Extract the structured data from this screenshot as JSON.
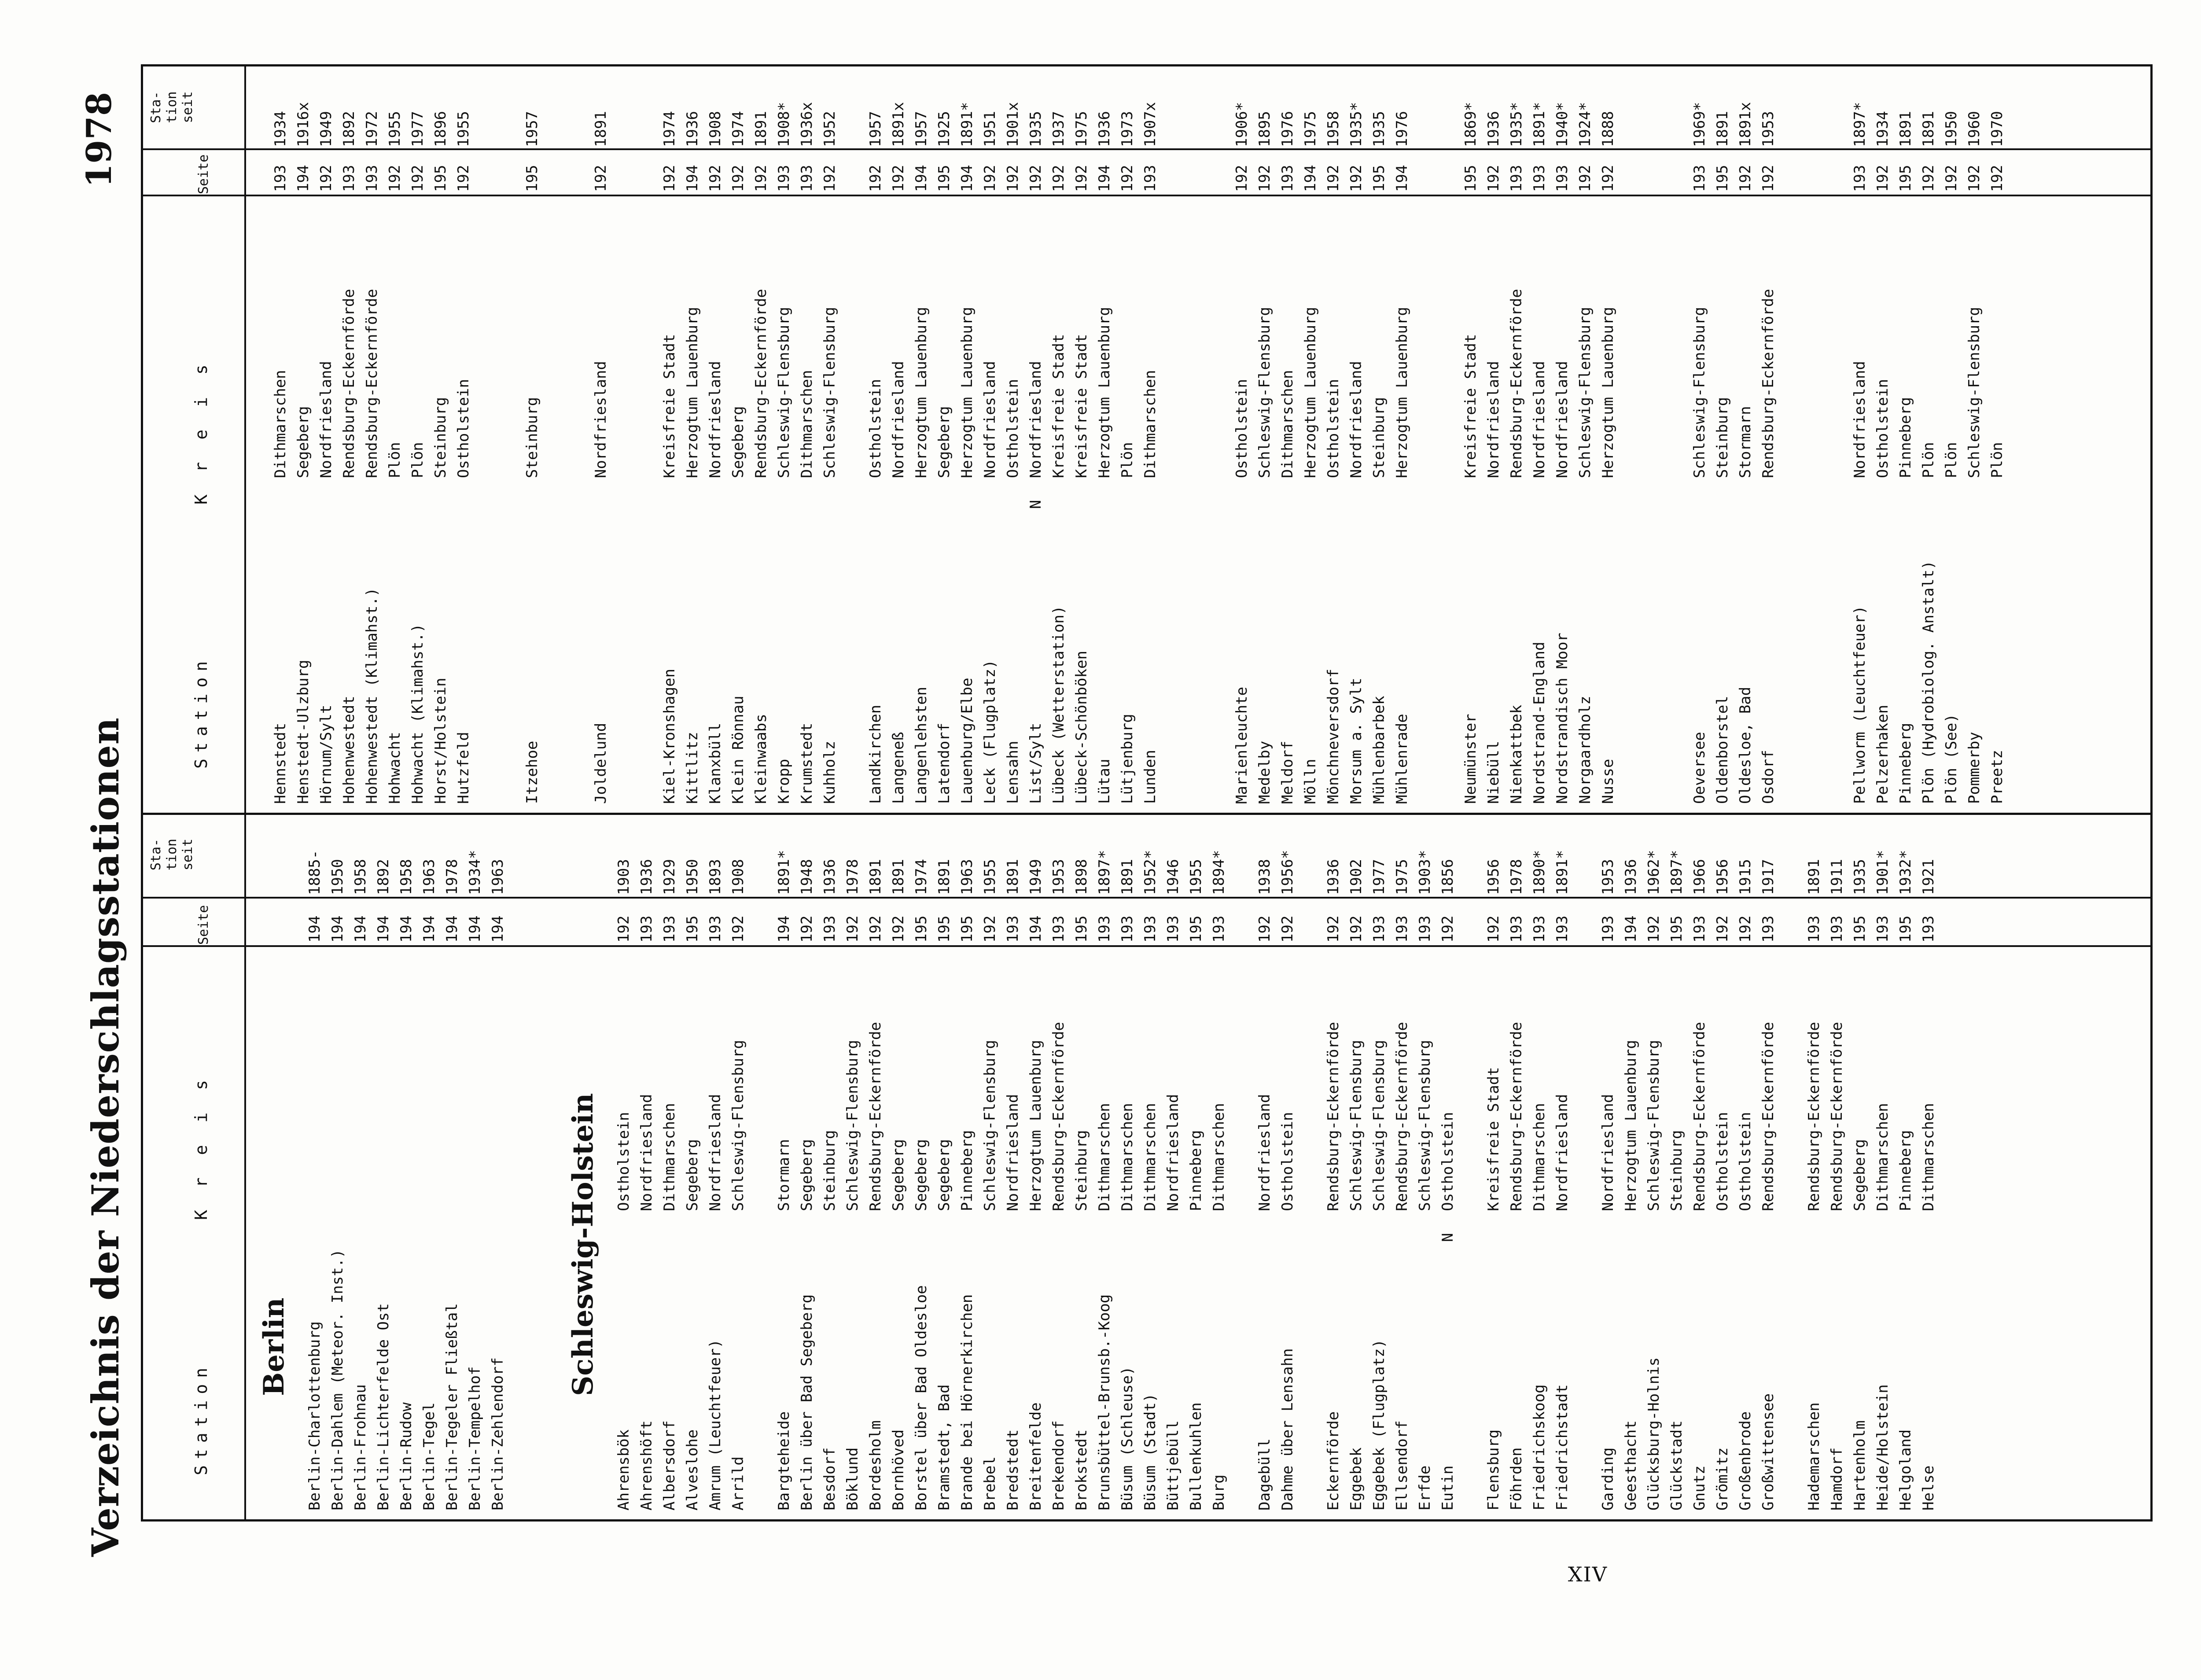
{
  "page_number": "XIV",
  "title": "Verzeichnis der Niederschlagsstationen",
  "year": "1978",
  "headers": {
    "station": "Station",
    "kreis": "K r e i s",
    "seite": "Seite",
    "seit": "Sta-\ntion\nseit"
  },
  "left": [
    {
      "section": "Berlin"
    },
    {
      "station": "Berlin-Charlottenburg",
      "kreis": "",
      "seite": "194",
      "seit": "1885-"
    },
    {
      "station": "Berlin-Dahlem (Meteor. Inst.)",
      "kreis": "",
      "seite": "194",
      "seit": "1950"
    },
    {
      "station": "Berlin-Frohnau",
      "kreis": "",
      "seite": "194",
      "seit": "1958"
    },
    {
      "station": "Berlin-Lichterfelde Ost",
      "kreis": "",
      "seite": "194",
      "seit": "1892"
    },
    {
      "station": "Berlin-Rudow",
      "kreis": "",
      "seite": "194",
      "seit": "1958"
    },
    {
      "station": "Berlin-Tegel",
      "kreis": "",
      "seite": "194",
      "seit": "1963"
    },
    {
      "station": "Berlin-Tegeler Fließtal",
      "kreis": "",
      "seite": "194",
      "seit": "1978"
    },
    {
      "station": "Berlin-Tempelhof",
      "kreis": "",
      "seite": "194",
      "seit": "1934*"
    },
    {
      "station": "Berlin-Zehlendorf",
      "kreis": "",
      "seite": "194",
      "seit": "1963"
    },
    {
      "gap": 2
    },
    {
      "section": "Schleswig-Holstein"
    },
    {
      "station": "Ahrensbök",
      "kreis": "Ostholstein",
      "seite": "192",
      "seit": "1903"
    },
    {
      "station": "Ahrenshöft",
      "kreis": "Nordfriesland",
      "seite": "193",
      "seit": "1936"
    },
    {
      "station": "Albersdorf",
      "kreis": "Dithmarschen",
      "seite": "193",
      "seit": "1929"
    },
    {
      "station": "Alveslohe",
      "kreis": "Segeberg",
      "seite": "195",
      "seit": "1950"
    },
    {
      "station": "Amrum (Leuchtfeuer)",
      "kreis": "Nordfriesland",
      "seite": "193",
      "seit": "1893"
    },
    {
      "station": "Arrild",
      "kreis": "Schleswig-Flensburg",
      "seite": "192",
      "seit": "1908"
    },
    {
      "gap": 1
    },
    {
      "station": "Bargteheide",
      "kreis": "Stormarn",
      "seite": "194",
      "seit": "1891*"
    },
    {
      "station": "Berlin über Bad Segeberg",
      "kreis": "Segeberg",
      "seite": "192",
      "seit": "1948"
    },
    {
      "station": "Besdorf",
      "kreis": "Steinburg",
      "seite": "193",
      "seit": "1936"
    },
    {
      "station": "Böklund",
      "kreis": "Schleswig-Flensburg",
      "seite": "192",
      "seit": "1978"
    },
    {
      "station": "Bordesholm",
      "kreis": "Rendsburg-Eckernförde",
      "seite": "192",
      "seit": "1891"
    },
    {
      "station": "Bornhöved",
      "kreis": "Segeberg",
      "seite": "192",
      "seit": "1891"
    },
    {
      "station": "Borstel über Bad Oldesloe",
      "kreis": "Segeberg",
      "seite": "195",
      "seit": "1974"
    },
    {
      "station": "Bramstedt, Bad",
      "kreis": "Segeberg",
      "seite": "195",
      "seit": "1891"
    },
    {
      "station": "Brande bei Hörnerkirchen",
      "kreis": "Pinneberg",
      "seite": "195",
      "seit": "1963"
    },
    {
      "station": "Brebel",
      "kreis": "Schleswig-Flensburg",
      "seite": "192",
      "seit": "1955"
    },
    {
      "station": "Bredstedt",
      "kreis": "Nordfriesland",
      "seite": "193",
      "seit": "1891"
    },
    {
      "station": "Breitenfelde",
      "kreis": "Herzogtum Lauenburg",
      "seite": "194",
      "seit": "1949"
    },
    {
      "station": "Brekendorf",
      "kreis": "Rendsburg-Eckernförde",
      "seite": "193",
      "seit": "1953"
    },
    {
      "station": "Brokstedt",
      "kreis": "Steinburg",
      "seite": "195",
      "seit": "1898"
    },
    {
      "station": "Brunsbüttel-Brunsb.-Koog",
      "kreis": "Dithmarschen",
      "seite": "193",
      "seit": "1897*"
    },
    {
      "station": "Büsum (Schleuse)",
      "kreis": "Dithmarschen",
      "seite": "193",
      "seit": "1891"
    },
    {
      "station": "Büsum (Stadt)",
      "kreis": "Dithmarschen",
      "seite": "193",
      "seit": "1952*"
    },
    {
      "station": "Büttjebüll",
      "kreis": "Nordfriesland",
      "seite": "193",
      "seit": "1946"
    },
    {
      "station": "Bullenkuhlen",
      "kreis": "Pinneberg",
      "seite": "195",
      "seit": "1955"
    },
    {
      "station": "Burg",
      "kreis": "Dithmarschen",
      "seite": "193",
      "seit": "1894*"
    },
    {
      "gap": 1
    },
    {
      "station": "Dagebüll",
      "kreis": "Nordfriesland",
      "seite": "192",
      "seit": "1938"
    },
    {
      "station": "Dahme über Lensahn",
      "kreis": "Ostholstein",
      "seite": "192",
      "seit": "1956*"
    },
    {
      "gap": 1
    },
    {
      "station": "Eckernförde",
      "kreis": "Rendsburg-Eckernförde",
      "seite": "192",
      "seit": "1936"
    },
    {
      "station": "Eggebek",
      "kreis": "Schleswig-Flensburg",
      "seite": "192",
      "seit": "1902"
    },
    {
      "station": "Eggebek (Flugplatz)",
      "kreis": "Schleswig-Flensburg",
      "seite": "193",
      "seit": "1977"
    },
    {
      "station": "Ellsendorf",
      "kreis": "Rendsburg-Eckernförde",
      "seite": "193",
      "seit": "1975"
    },
    {
      "station": "Erfde",
      "kreis": "Schleswig-Flensburg",
      "seite": "193",
      "seit": "1903*"
    },
    {
      "station": "Eutin",
      "kreis": "Ostholstein",
      "seite": "192",
      "seit": "1856",
      "n": true
    },
    {
      "gap": 1
    },
    {
      "station": "Flensburg",
      "kreis": "Kreisfreie Stadt",
      "seite": "192",
      "seit": "1956"
    },
    {
      "station": "Föhrden",
      "kreis": "Rendsburg-Eckernförde",
      "seite": "193",
      "seit": "1978"
    },
    {
      "station": "Friedrichskoog",
      "kreis": "Dithmarschen",
      "seite": "193",
      "seit": "1890*"
    },
    {
      "station": "Friedrichstadt",
      "kreis": "Nordfriesland",
      "seite": "193",
      "seit": "1891*"
    },
    {
      "gap": 1
    },
    {
      "station": "Garding",
      "kreis": "Nordfriesland",
      "seite": "193",
      "seit": "1953"
    },
    {
      "station": "Geesthacht",
      "kreis": "Herzogtum Lauenburg",
      "seite": "194",
      "seit": "1936"
    },
    {
      "station": "Glücksburg-Holnis",
      "kreis": "Schleswig-Flensburg",
      "seite": "192",
      "seit": "1962*"
    },
    {
      "station": "Glückstadt",
      "kreis": "Steinburg",
      "seite": "195",
      "seit": "1897*"
    },
    {
      "station": "Gnutz",
      "kreis": "Rendsburg-Eckernförde",
      "seite": "193",
      "seit": "1966"
    },
    {
      "station": "Grömitz",
      "kreis": "Ostholstein",
      "seite": "192",
      "seit": "1956"
    },
    {
      "station": "Großenbrode",
      "kreis": "Ostholstein",
      "seite": "192",
      "seit": "1915"
    },
    {
      "station": "Großwittensee",
      "kreis": "Rendsburg-Eckernförde",
      "seite": "193",
      "seit": "1917"
    },
    {
      "gap": 1
    },
    {
      "station": "Hademarschen",
      "kreis": "Rendsburg-Eckernförde",
      "seite": "193",
      "seit": "1891"
    },
    {
      "station": "Hamdorf",
      "kreis": "Rendsburg-Eckernförde",
      "seite": "193",
      "seit": "1911"
    },
    {
      "station": "Hartenholm",
      "kreis": "Segeberg",
      "seite": "195",
      "seit": "1935"
    },
    {
      "station": "Heide/Holstein",
      "kreis": "Dithmarschen",
      "seite": "193",
      "seit": "1901*"
    },
    {
      "station": "Helgoland",
      "kreis": "Pinneberg",
      "seite": "195",
      "seit": "1932*"
    },
    {
      "station": "Helse",
      "kreis": "Dithmarschen",
      "seite": "193",
      "seit": "1921"
    }
  ],
  "right": [
    {
      "gap": 1
    },
    {
      "station": "Hennstedt",
      "kreis": "Dithmarschen",
      "seite": "193",
      "seit": "1934"
    },
    {
      "station": "Henstedt-Ulzburg",
      "kreis": "Segeberg",
      "seite": "194",
      "seit": "1916x"
    },
    {
      "station": "Hörnum/Sylt",
      "kreis": "Nordfriesland",
      "seite": "192",
      "seit": "1949"
    },
    {
      "station": "Hohenwestedt",
      "kreis": "Rendsburg-Eckernförde",
      "seite": "193",
      "seit": "1892"
    },
    {
      "station": "Hohenwestedt (Klimahst.)",
      "kreis": "Rendsburg-Eckernförde",
      "seite": "193",
      "seit": "1972"
    },
    {
      "station": "Hohwacht",
      "kreis": "Plön",
      "seite": "192",
      "seit": "1955"
    },
    {
      "station": "Hohwacht (Klimahst.)",
      "kreis": "Plön",
      "seite": "192",
      "seit": "1977"
    },
    {
      "station": "Horst/Holstein",
      "kreis": "Steinburg",
      "seite": "195",
      "seit": "1896"
    },
    {
      "station": "Hutzfeld",
      "kreis": "Ostholstein",
      "seite": "192",
      "seit": "1955"
    },
    {
      "gap": 2
    },
    {
      "station": "Itzehoe",
      "kreis": "Steinburg",
      "seite": "195",
      "seit": "1957"
    },
    {
      "gap": 2
    },
    {
      "station": "Joldelund",
      "kreis": "Nordfriesland",
      "seite": "192",
      "seit": "1891"
    },
    {
      "gap": 2
    },
    {
      "station": "Kiel-Kronshagen",
      "kreis": "Kreisfreie Stadt",
      "seite": "192",
      "seit": "1974"
    },
    {
      "station": "Kittlitz",
      "kreis": "Herzogtum Lauenburg",
      "seite": "194",
      "seit": "1936"
    },
    {
      "station": "Klanxbüll",
      "kreis": "Nordfriesland",
      "seite": "192",
      "seit": "1908"
    },
    {
      "station": "Klein Rönnau",
      "kreis": "Segeberg",
      "seite": "192",
      "seit": "1974"
    },
    {
      "station": "Kleinwaabs",
      "kreis": "Rendsburg-Eckernförde",
      "seite": "192",
      "seit": "1891"
    },
    {
      "station": "Kropp",
      "kreis": "Schleswig-Flensburg",
      "seite": "193",
      "seit": "1908*"
    },
    {
      "station": "Krumstedt",
      "kreis": "Dithmarschen",
      "seite": "193",
      "seit": "1936x"
    },
    {
      "station": "Kuhholz",
      "kreis": "Schleswig-Flensburg",
      "seite": "192",
      "seit": "1952"
    },
    {
      "gap": 1
    },
    {
      "station": "Landkirchen",
      "kreis": "Ostholstein",
      "seite": "192",
      "seit": "1957"
    },
    {
      "station": "Langeneß",
      "kreis": "Nordfriesland",
      "seite": "192",
      "seit": "1891x"
    },
    {
      "station": "Langenlehsten",
      "kreis": "Herzogtum Lauenburg",
      "seite": "194",
      "seit": "1957"
    },
    {
      "station": "Latendorf",
      "kreis": "Segeberg",
      "seite": "195",
      "seit": "1925"
    },
    {
      "station": "Lauenburg/Elbe",
      "kreis": "Herzogtum Lauenburg",
      "seite": "194",
      "seit": "1891*"
    },
    {
      "station": "Leck (Flugplatz)",
      "kreis": "Nordfriesland",
      "seite": "192",
      "seit": "1951"
    },
    {
      "station": "Lensahn",
      "kreis": "Ostholstein",
      "seite": "192",
      "seit": "1901x"
    },
    {
      "station": "List/Sylt",
      "kreis": "Nordfriesland",
      "seite": "192",
      "seit": "1935",
      "n": true
    },
    {
      "station": "Lübeck (Wetterstation)",
      "kreis": "Kreisfreie Stadt",
      "seite": "192",
      "seit": "1937"
    },
    {
      "station": "Lübeck-Schönböken",
      "kreis": "Kreisfreie Stadt",
      "seite": "192",
      "seit": "1975"
    },
    {
      "station": "Lütau",
      "kreis": "Herzogtum Lauenburg",
      "seite": "194",
      "seit": "1936"
    },
    {
      "station": "Lütjenburg",
      "kreis": "Plön",
      "seite": "192",
      "seit": "1973"
    },
    {
      "station": "Lunden",
      "kreis": "Dithmarschen",
      "seite": "193",
      "seit": "1907x"
    },
    {
      "gap": 3
    },
    {
      "station": "Marienleuchte",
      "kreis": "Ostholstein",
      "seite": "192",
      "seit": "1906*"
    },
    {
      "station": "Medelby",
      "kreis": "Schleswig-Flensburg",
      "seite": "192",
      "seit": "1895"
    },
    {
      "station": "Meldorf",
      "kreis": "Dithmarschen",
      "seite": "193",
      "seit": "1976"
    },
    {
      "station": "Mölln",
      "kreis": "Herzogtum Lauenburg",
      "seite": "194",
      "seit": "1975"
    },
    {
      "station": "Mönchneversdorf",
      "kreis": "Ostholstein",
      "seite": "192",
      "seit": "1958"
    },
    {
      "station": "Morsum a. Sylt",
      "kreis": "Nordfriesland",
      "seite": "192",
      "seit": "1935*"
    },
    {
      "station": "Mühlenbarbek",
      "kreis": "Steinburg",
      "seite": "195",
      "seit": "1935"
    },
    {
      "station": "Mühlenrade",
      "kreis": "Herzogtum Lauenburg",
      "seite": "194",
      "seit": "1976"
    },
    {
      "gap": 2
    },
    {
      "station": "Neumünster",
      "kreis": "Kreisfreie Stadt",
      "seite": "195",
      "seit": "1869*"
    },
    {
      "station": "Niebüll",
      "kreis": "Nordfriesland",
      "seite": "192",
      "seit": "1936"
    },
    {
      "station": "Nienkattbek",
      "kreis": "Rendsburg-Eckernförde",
      "seite": "193",
      "seit": "1935*"
    },
    {
      "station": "Nordstrand-England",
      "kreis": "Nordfriesland",
      "seite": "193",
      "seit": "1891*"
    },
    {
      "station": "Nordstrandisch Moor",
      "kreis": "Nordfriesland",
      "seite": "193",
      "seit": "1940*"
    },
    {
      "station": "Norgaardholz",
      "kreis": "Schleswig-Flensburg",
      "seite": "192",
      "seit": "1924*"
    },
    {
      "station": "Nusse",
      "kreis": "Herzogtum Lauenburg",
      "seite": "192",
      "seit": "1888"
    },
    {
      "gap": 3
    },
    {
      "station": "Oeversee",
      "kreis": "Schleswig-Flensburg",
      "seite": "193",
      "seit": "1969*"
    },
    {
      "station": "Oldenborstel",
      "kreis": "Steinburg",
      "seite": "195",
      "seit": "1891"
    },
    {
      "station": "Oldesloe, Bad",
      "kreis": "Stormarn",
      "seite": "192",
      "seit": "1891x"
    },
    {
      "station": "Osdorf",
      "kreis": "Rendsburg-Eckernförde",
      "seite": "192",
      "seit": "1953"
    },
    {
      "gap": 3
    },
    {
      "station": "Pellworm (Leuchtfeuer)",
      "kreis": "Nordfriesland",
      "seite": "193",
      "seit": "1897*"
    },
    {
      "station": "Pelzerhaken",
      "kreis": "Ostholstein",
      "seite": "192",
      "seit": "1934"
    },
    {
      "station": "Pinneberg",
      "kreis": "Pinneberg",
      "seite": "195",
      "seit": "1891"
    },
    {
      "station": "Plön (Hydrobiolog. Anstalt)",
      "kreis": "Plön",
      "seite": "192",
      "seit": "1891"
    },
    {
      "station": "Plön (See)",
      "kreis": "Plön",
      "seite": "192",
      "seit": "1950"
    },
    {
      "station": "Pommerby",
      "kreis": "Schleswig-Flensburg",
      "seite": "192",
      "seit": "1960"
    },
    {
      "station": "Preetz",
      "kreis": "Plön",
      "seite": "192",
      "seit": "1970"
    }
  ]
}
